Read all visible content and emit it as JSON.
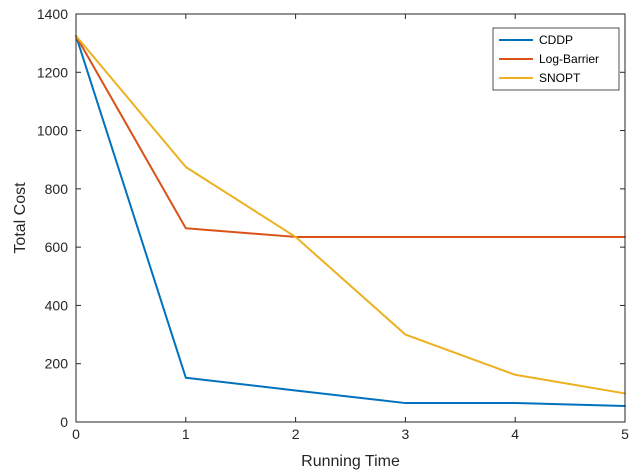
{
  "chart_data": {
    "type": "line",
    "xlabel": "Running Time",
    "ylabel": "Total Cost",
    "xlim": [
      0,
      5
    ],
    "ylim": [
      0,
      1400
    ],
    "xticks": [
      "0",
      "1",
      "2",
      "3",
      "4",
      "5"
    ],
    "yticks": [
      "0",
      "200",
      "400",
      "600",
      "800",
      "1000",
      "1200",
      "1400"
    ],
    "grid": false,
    "legend_position": "top-right",
    "x": [
      0,
      1,
      2,
      3,
      4,
      5
    ],
    "series": [
      {
        "name": "CDDP",
        "color": "#0072BD",
        "values": [
          1325,
          152,
          108,
          65,
          65,
          55
        ]
      },
      {
        "name": "Log-Barrier",
        "color": "#D95319",
        "values": [
          1325,
          665,
          635,
          635,
          635,
          635
        ]
      },
      {
        "name": "SNOPT",
        "color": "#EDB120",
        "values": [
          1325,
          875,
          635,
          300,
          162,
          98
        ]
      }
    ]
  }
}
